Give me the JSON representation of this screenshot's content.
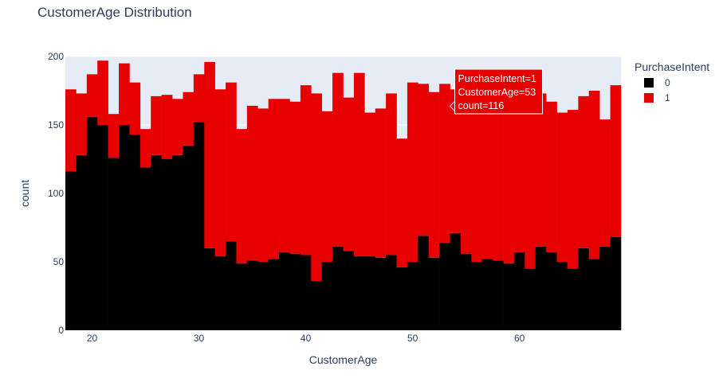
{
  "chart_data": {
    "type": "bar",
    "barmode": "stack",
    "title": "CustomerAge Distribution",
    "xlabel": "CustomerAge",
    "ylabel": "count",
    "xlim": [
      17.5,
      69.5
    ],
    "ylim": [
      0,
      200
    ],
    "x_ticks": [
      20,
      30,
      40,
      50,
      60
    ],
    "y_ticks": [
      0,
      50,
      100,
      150,
      200
    ],
    "grid": true,
    "plot_bgcolor": "#E5ECF6",
    "x": [
      18,
      19,
      20,
      21,
      22,
      23,
      24,
      25,
      26,
      27,
      28,
      29,
      30,
      31,
      32,
      33,
      34,
      35,
      36,
      37,
      38,
      39,
      40,
      41,
      42,
      43,
      44,
      45,
      46,
      47,
      48,
      49,
      50,
      51,
      52,
      53,
      54,
      55,
      56,
      57,
      58,
      59,
      60,
      61,
      62,
      63,
      64,
      65,
      66,
      67,
      68,
      69
    ],
    "series": [
      {
        "name": "0",
        "color": "#000000",
        "values": [
          116,
          128,
          156,
          150,
          126,
          150,
          143,
          119,
          128,
          125,
          128,
          135,
          152,
          60,
          54,
          65,
          49,
          51,
          50,
          52,
          57,
          56,
          55,
          36,
          50,
          61,
          58,
          54,
          54,
          53,
          55,
          46,
          50,
          69,
          53,
          64,
          71,
          56,
          50,
          52,
          51,
          49,
          57,
          45,
          61,
          57,
          50,
          45,
          60,
          52,
          61,
          68
        ]
      },
      {
        "name": "1",
        "color": "#E60000",
        "values": [
          60,
          45,
          31,
          47,
          32,
          45,
          38,
          28,
          43,
          47,
          41,
          39,
          35,
          136,
          122,
          116,
          98,
          113,
          112,
          117,
          112,
          111,
          124,
          137,
          110,
          127,
          112,
          134,
          105,
          109,
          118,
          94,
          131,
          111,
          121,
          116,
          105,
          113,
          118,
          113,
          120,
          116,
          106,
          123,
          112,
          110,
          109,
          116,
          111,
          123,
          93,
          111
        ]
      }
    ],
    "legend": {
      "title": "PurchaseIntent",
      "position": "top-right",
      "items": [
        {
          "label": "0",
          "color": "#000000"
        },
        {
          "label": "1",
          "color": "#E60000"
        }
      ]
    },
    "hover": {
      "x": 53,
      "series": "1",
      "lines": [
        "PurchaseIntent=1",
        "CustomerAge=53",
        "count=116"
      ]
    }
  }
}
